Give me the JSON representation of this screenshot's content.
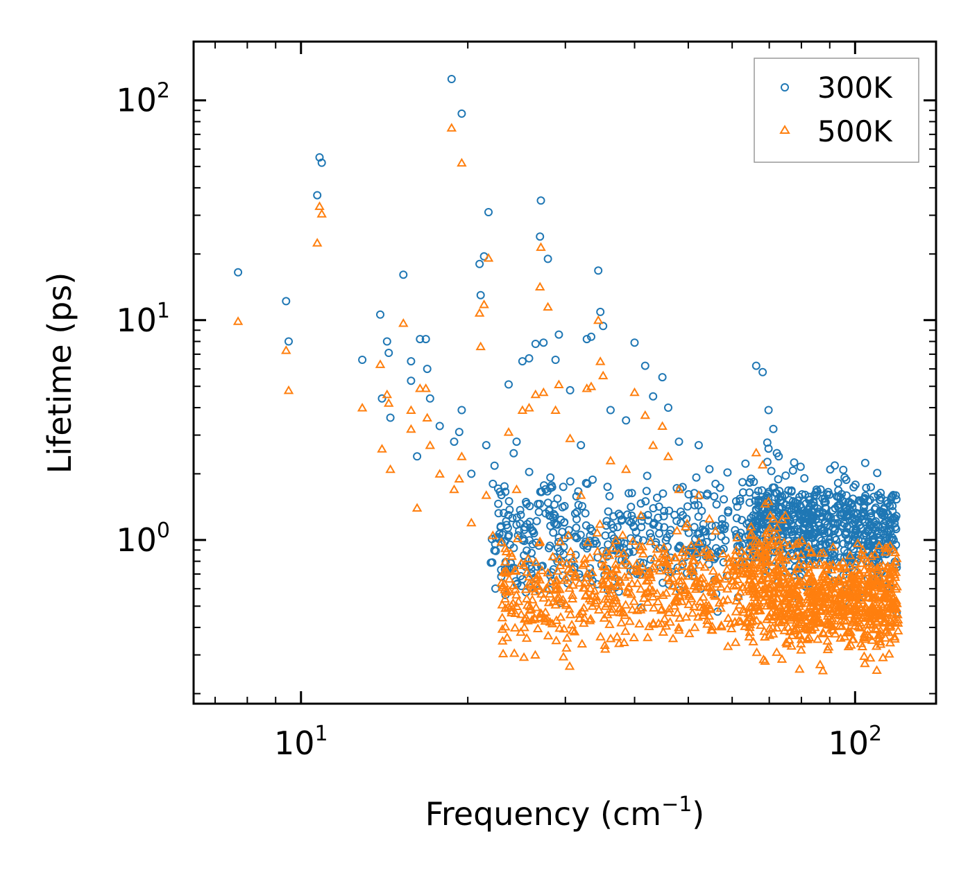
{
  "chart_data": {
    "type": "scatter",
    "xscale": "log",
    "yscale": "log",
    "xlim": [
      6.4,
      140
    ],
    "ylim": [
      0.18,
      185
    ],
    "xlabel": "Frequency (cm",
    "xlabel_sup": "−1",
    "xlabel_end": ")",
    "ylabel": "Lifetime (ps)",
    "x_ticks": [
      {
        "base": "10",
        "exp": "1",
        "value": 10
      },
      {
        "base": "10",
        "exp": "2",
        "value": 100
      }
    ],
    "y_ticks": [
      {
        "base": "10",
        "exp": "0",
        "value": 1
      },
      {
        "base": "10",
        "exp": "1",
        "value": 10
      },
      {
        "base": "10",
        "exp": "2",
        "value": 100
      }
    ],
    "legend_position": "top-right",
    "series": [
      {
        "name": "300K",
        "marker": "circle",
        "color": "#1f77b4",
        "points": [
          [
            7.7,
            16.5
          ],
          [
            9.4,
            12.2
          ],
          [
            9.5,
            8.0
          ],
          [
            10.7,
            37
          ],
          [
            10.8,
            55
          ],
          [
            10.9,
            52
          ],
          [
            12.9,
            6.6
          ],
          [
            13.9,
            10.6
          ],
          [
            14.3,
            8.0
          ],
          [
            14.4,
            7.1
          ],
          [
            15.3,
            16.1
          ],
          [
            14.0,
            4.4
          ],
          [
            14.5,
            3.6
          ],
          [
            15.8,
            6.5
          ],
          [
            15.8,
            5.3
          ],
          [
            16.4,
            8.2
          ],
          [
            16.8,
            8.2
          ],
          [
            16.9,
            6.0
          ],
          [
            17.1,
            4.4
          ],
          [
            17.8,
            3.3
          ],
          [
            16.2,
            2.4
          ],
          [
            18.7,
            125
          ],
          [
            19.5,
            87
          ],
          [
            19.5,
            3.9
          ],
          [
            19.3,
            3.1
          ],
          [
            18.9,
            2.8
          ],
          [
            21.0,
            18
          ],
          [
            21.4,
            19.5
          ],
          [
            21.1,
            13
          ],
          [
            21.8,
            31
          ],
          [
            27.1,
            35
          ],
          [
            27.0,
            24
          ],
          [
            27.9,
            19
          ],
          [
            34.4,
            16.8
          ],
          [
            34.7,
            10.9
          ],
          [
            35.1,
            9.4
          ],
          [
            20.3,
            2.0
          ],
          [
            21.6,
            2.7
          ],
          [
            22.2,
            1.8
          ],
          [
            23.0,
            1.6
          ],
          [
            23.7,
            5.1
          ],
          [
            24.5,
            2.8
          ],
          [
            25.1,
            6.5
          ],
          [
            25.8,
            6.7
          ],
          [
            26.5,
            7.8
          ],
          [
            27.4,
            7.9
          ],
          [
            28.8,
            6.6
          ],
          [
            29.2,
            8.6
          ],
          [
            30.6,
            4.8
          ],
          [
            32.0,
            2.7
          ],
          [
            32.8,
            8.2
          ],
          [
            33.4,
            8.4
          ],
          [
            36.2,
            3.9
          ],
          [
            38.6,
            3.5
          ],
          [
            40.0,
            7.9
          ],
          [
            41.8,
            6.2
          ],
          [
            43.2,
            4.5
          ],
          [
            44.9,
            5.5
          ],
          [
            46.0,
            4.0
          ],
          [
            48.1,
            2.8
          ],
          [
            52.2,
            2.7
          ],
          [
            54.6,
            2.1
          ],
          [
            56.0,
            1.8
          ],
          [
            61.0,
            1.5
          ],
          [
            64.9,
            1.9
          ],
          [
            66.3,
            6.2
          ],
          [
            68.1,
            5.8
          ],
          [
            69.8,
            3.9
          ],
          [
            71.2,
            3.2
          ],
          [
            72.8,
            2.4
          ],
          [
            77.3,
            1.5
          ],
          [
            79.3,
            1.2
          ],
          [
            84.4,
            1.6
          ],
          [
            88.3,
            1.4
          ],
          [
            94.0,
            1.3
          ],
          [
            100.1,
            1.1
          ],
          [
            105.6,
            1.5
          ],
          [
            110.0,
            1.6
          ],
          [
            115.1,
            1.1
          ],
          [
            117.4,
            1.0
          ],
          [
            118.5,
            0.95
          ]
        ]
      },
      {
        "name": "500K",
        "marker": "triangle",
        "color": "#ff7f0e",
        "points": [
          [
            7.7,
            9.9
          ],
          [
            9.4,
            7.3
          ],
          [
            9.5,
            4.8
          ],
          [
            10.7,
            22.5
          ],
          [
            10.8,
            33
          ],
          [
            10.9,
            30.5
          ],
          [
            12.9,
            4.0
          ],
          [
            13.9,
            6.3
          ],
          [
            14.3,
            4.6
          ],
          [
            14.4,
            4.2
          ],
          [
            15.3,
            9.7
          ],
          [
            14.0,
            2.6
          ],
          [
            14.5,
            2.1
          ],
          [
            15.8,
            3.9
          ],
          [
            15.8,
            3.2
          ],
          [
            16.4,
            4.9
          ],
          [
            16.8,
            4.9
          ],
          [
            16.9,
            3.6
          ],
          [
            17.1,
            2.7
          ],
          [
            17.8,
            2.0
          ],
          [
            16.2,
            1.4
          ],
          [
            18.7,
            75
          ],
          [
            19.5,
            52
          ],
          [
            19.5,
            2.4
          ],
          [
            19.3,
            1.9
          ],
          [
            18.9,
            1.7
          ],
          [
            21.0,
            10.8
          ],
          [
            21.4,
            11.8
          ],
          [
            21.1,
            7.6
          ],
          [
            21.8,
            19.2
          ],
          [
            27.1,
            21.5
          ],
          [
            27.0,
            14.2
          ],
          [
            27.9,
            11.5
          ],
          [
            34.4,
            10.0
          ],
          [
            34.7,
            6.5
          ],
          [
            35.1,
            5.6
          ],
          [
            20.3,
            1.2
          ],
          [
            21.6,
            1.6
          ],
          [
            22.2,
            1.05
          ],
          [
            23.0,
            0.98
          ],
          [
            23.7,
            3.1
          ],
          [
            24.5,
            1.7
          ],
          [
            25.1,
            3.9
          ],
          [
            25.8,
            4.0
          ],
          [
            26.5,
            4.6
          ],
          [
            27.4,
            4.7
          ],
          [
            28.8,
            3.9
          ],
          [
            29.2,
            5.1
          ],
          [
            30.6,
            2.9
          ],
          [
            32.0,
            1.6
          ],
          [
            32.8,
            4.9
          ],
          [
            33.4,
            5.0
          ],
          [
            36.2,
            2.3
          ],
          [
            38.6,
            2.1
          ],
          [
            40.0,
            4.7
          ],
          [
            41.8,
            3.7
          ],
          [
            43.2,
            2.7
          ],
          [
            44.9,
            3.3
          ],
          [
            46.0,
            2.4
          ],
          [
            48.1,
            1.7
          ],
          [
            52.2,
            1.6
          ],
          [
            54.6,
            1.25
          ],
          [
            56.0,
            1.1
          ],
          [
            61.0,
            0.9
          ],
          [
            64.9,
            1.15
          ],
          [
            66.3,
            2.5
          ],
          [
            68.1,
            2.2
          ],
          [
            69.8,
            1.5
          ],
          [
            71.2,
            1.25
          ],
          [
            72.8,
            0.95
          ],
          [
            77.3,
            0.6
          ],
          [
            79.3,
            0.5
          ],
          [
            84.4,
            0.65
          ],
          [
            88.3,
            0.55
          ],
          [
            94.0,
            0.5
          ],
          [
            100.1,
            0.45
          ],
          [
            105.6,
            0.6
          ],
          [
            110.0,
            0.65
          ],
          [
            115.1,
            0.7
          ],
          [
            117.4,
            0.65
          ],
          [
            118.5,
            0.6
          ]
        ]
      }
    ]
  }
}
